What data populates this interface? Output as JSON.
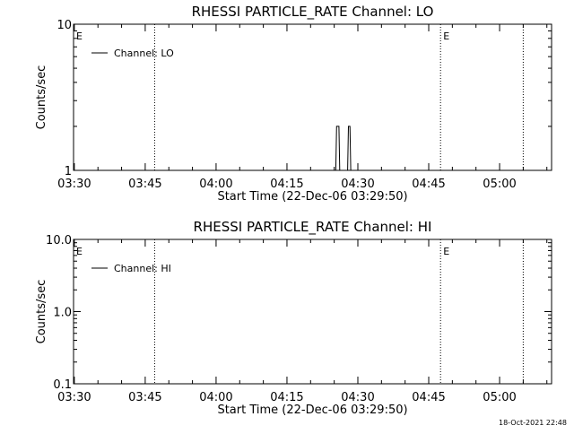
{
  "chart_data": [
    {
      "type": "line",
      "title": "RHESSI PARTICLE_RATE Channel: LO",
      "xlabel": "Start Time (22-Dec-06 03:29:50)",
      "ylabel": "Counts/sec",
      "y_scale": "log",
      "ylim": [
        1,
        10
      ],
      "y_ticks": [
        1,
        10
      ],
      "y_tick_labels": [
        "1",
        "10"
      ],
      "x_ticks": [
        "03:30",
        "03:45",
        "04:00",
        "04:15",
        "04:30",
        "04:45",
        "05:00"
      ],
      "x_range": [
        "03:29:50",
        "05:11:00"
      ],
      "event_lines": [
        "03:47:00",
        "04:47:30",
        "05:05:00"
      ],
      "event_markers": [
        {
          "label": "E",
          "time": "03:29:50"
        },
        {
          "label": "E",
          "time": "04:47:30"
        }
      ],
      "legend": {
        "position": "top-left",
        "entries": [
          "Channel: LO"
        ]
      },
      "grid": false,
      "series": [
        {
          "name": "Channel: LO",
          "points": [
            [
              "04:25:20",
              1
            ],
            [
              "04:25:30",
              2
            ],
            [
              "04:26:00",
              2
            ],
            [
              "04:26:10",
              1
            ],
            [
              "04:27:50",
              1
            ],
            [
              "04:28:00",
              2
            ],
            [
              "04:28:20",
              2
            ],
            [
              "04:28:30",
              1
            ]
          ]
        }
      ]
    },
    {
      "type": "line",
      "title": "RHESSI PARTICLE_RATE Channel: HI",
      "xlabel": "Start Time (22-Dec-06 03:29:50)",
      "ylabel": "Counts/sec",
      "y_scale": "log",
      "ylim": [
        0.1,
        10
      ],
      "y_ticks": [
        0.1,
        1,
        10
      ],
      "y_tick_labels": [
        "0.1",
        "1.0",
        "10.0"
      ],
      "x_ticks": [
        "03:30",
        "03:45",
        "04:00",
        "04:15",
        "04:30",
        "04:45",
        "05:00"
      ],
      "x_range": [
        "03:29:50",
        "05:11:00"
      ],
      "event_lines": [
        "03:47:00",
        "04:47:30",
        "05:05:00"
      ],
      "event_markers": [
        {
          "label": "E",
          "time": "03:29:50"
        },
        {
          "label": "E",
          "time": "04:47:30"
        }
      ],
      "legend": {
        "position": "top-left",
        "entries": [
          "Channel: HI"
        ]
      },
      "grid": false,
      "series": [
        {
          "name": "Channel: HI",
          "points": []
        }
      ]
    }
  ],
  "footer_stamp": "18-Oct-2021 22:48"
}
